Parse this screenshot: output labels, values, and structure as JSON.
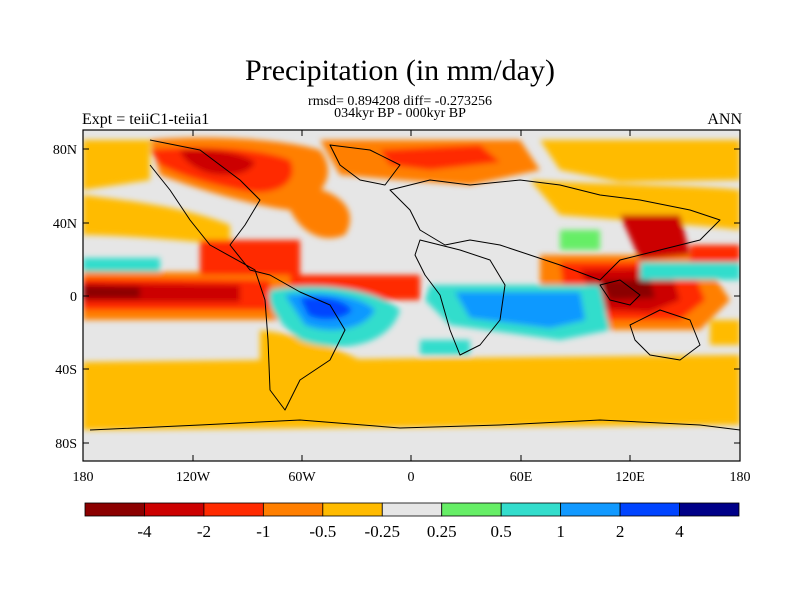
{
  "title": "Precipitation (in mm/day)",
  "subtitle_stats": "rmsd= 0.894208 diff= -0.273256",
  "subtitle_period": "034kyr BP - 000kyr BP",
  "left_label": "Expt = teiiC1-teiia1",
  "right_label": "ANN",
  "lat_ticks": [
    "80N",
    "40N",
    "0",
    "40S",
    "80S"
  ],
  "lon_ticks": [
    "180",
    "120W",
    "60W",
    "0",
    "60E",
    "120E",
    "180"
  ],
  "colorbar": {
    "colors": [
      "#8b0000",
      "#cc0000",
      "#ff2a00",
      "#ff7f00",
      "#ffbb00",
      "#e6e6e6",
      "#66ee66",
      "#33ddcc",
      "#1199ff",
      "#0044ff",
      "#000088"
    ],
    "labels": [
      "-4",
      "-2",
      "-1",
      "-0.5",
      "-0.25",
      "0.25",
      "0.5",
      "1",
      "2",
      "4"
    ]
  }
}
